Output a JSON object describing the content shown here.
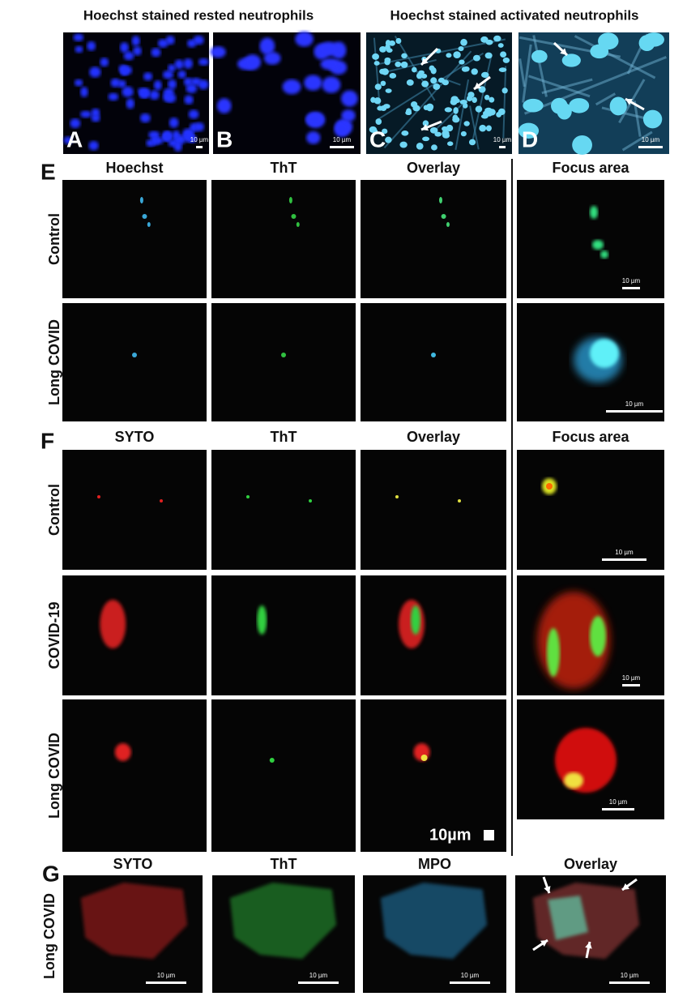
{
  "top": {
    "titles": [
      "Hoechst stained rested neutrophils",
      "Hoechst stained activated neutrophils"
    ],
    "panels": [
      {
        "letter": "A",
        "scale_bar": "10 µm"
      },
      {
        "letter": "B",
        "scale_bar": "10 µm"
      },
      {
        "letter": "C",
        "scale_bar": "10 µm"
      },
      {
        "letter": "D",
        "scale_bar": "10 µm"
      }
    ]
  },
  "panel_e": {
    "letter": "E",
    "columns": [
      "Hoechst",
      "ThT",
      "Overlay",
      "Focus area"
    ],
    "rows": [
      "Control",
      "Long COVID"
    ],
    "focus_scale_bars": [
      "10 µm",
      "10 µm"
    ]
  },
  "panel_f": {
    "letter": "F",
    "columns": [
      "SYTO",
      "ThT",
      "Overlay",
      "Focus area"
    ],
    "rows": [
      "Control",
      "COVID-19",
      "Long COVID"
    ],
    "scale_bar": "10µm",
    "focus_scale_bars": [
      "10 µm",
      "10 µm",
      "10 µm"
    ]
  },
  "panel_g": {
    "letter": "G",
    "columns": [
      "SYTO",
      "ThT",
      "MPO",
      "Overlay"
    ],
    "row": "Long COVID",
    "scale_bars": [
      "10 µm",
      "10 µm",
      "10 µm",
      "10 µm"
    ]
  }
}
